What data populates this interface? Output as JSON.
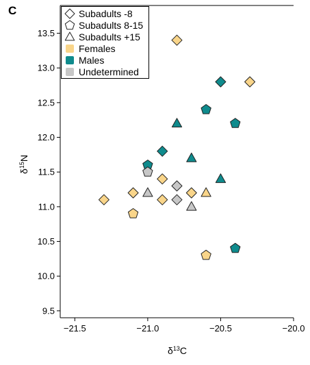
{
  "chart_data": {
    "type": "scatter",
    "panel_label": "C",
    "xlabel": {
      "base": "δ",
      "sup": "13",
      "suffix": "C"
    },
    "ylabel": {
      "base": "δ",
      "sup": "15",
      "suffix": "N"
    },
    "xlim": [
      -21.6,
      -20.0
    ],
    "ylim": [
      9.4,
      13.9
    ],
    "x_ticks": [
      -21.5,
      -21.0,
      -20.5,
      -20.0
    ],
    "x_tick_labels": [
      "−21.5",
      "−21.0",
      "−20.5",
      "−20.0"
    ],
    "y_ticks": [
      9.5,
      10.0,
      10.5,
      11.0,
      11.5,
      12.0,
      12.5,
      13.0,
      13.5
    ],
    "y_tick_labels": [
      "9.5",
      "10.0",
      "10.5",
      "11.0",
      "11.5",
      "12.0",
      "12.5",
      "13.0",
      "13.5"
    ],
    "grid": false,
    "legend_position": "top-left",
    "colors": {
      "Females": "#f9d58a",
      "Males": "#0f8b8d",
      "Undetermined": "#c7c7c7"
    },
    "legend": [
      {
        "label": "Subadults -8",
        "marker": "diamond",
        "fill": "none"
      },
      {
        "label": "Subadults 8-15",
        "marker": "pentagon",
        "fill": "none"
      },
      {
        "label": "Subadults +15",
        "marker": "triangle",
        "fill": "none"
      },
      {
        "label": "Females",
        "marker": "square",
        "fill": "#f9d58a"
      },
      {
        "label": "Males",
        "marker": "square",
        "fill": "#0f8b8d"
      },
      {
        "label": "Undetermined",
        "marker": "square",
        "fill": "#c7c7c7"
      }
    ],
    "points": [
      {
        "x": -21.3,
        "y": 11.1,
        "marker": "diamond",
        "group": "Females"
      },
      {
        "x": -21.1,
        "y": 11.2,
        "marker": "diamond",
        "group": "Females"
      },
      {
        "x": -20.9,
        "y": 11.4,
        "marker": "diamond",
        "group": "Females"
      },
      {
        "x": -20.9,
        "y": 11.1,
        "marker": "diamond",
        "group": "Females"
      },
      {
        "x": -20.7,
        "y": 11.2,
        "marker": "diamond",
        "group": "Females"
      },
      {
        "x": -20.8,
        "y": 13.4,
        "marker": "diamond",
        "group": "Females"
      },
      {
        "x": -20.3,
        "y": 12.8,
        "marker": "diamond",
        "group": "Females"
      },
      {
        "x": -21.1,
        "y": 10.9,
        "marker": "pentagon",
        "group": "Females"
      },
      {
        "x": -20.6,
        "y": 10.3,
        "marker": "pentagon",
        "group": "Females"
      },
      {
        "x": -20.6,
        "y": 11.2,
        "marker": "triangle",
        "group": "Females"
      },
      {
        "x": -20.5,
        "y": 12.8,
        "marker": "diamond",
        "group": "Males"
      },
      {
        "x": -20.6,
        "y": 12.4,
        "marker": "pentagon",
        "group": "Males"
      },
      {
        "x": -20.4,
        "y": 12.2,
        "marker": "pentagon",
        "group": "Males"
      },
      {
        "x": -20.8,
        "y": 12.2,
        "marker": "triangle",
        "group": "Males"
      },
      {
        "x": -20.9,
        "y": 11.8,
        "marker": "diamond",
        "group": "Males"
      },
      {
        "x": -20.7,
        "y": 11.7,
        "marker": "triangle",
        "group": "Males"
      },
      {
        "x": -21.0,
        "y": 11.6,
        "marker": "pentagon",
        "group": "Males"
      },
      {
        "x": -20.5,
        "y": 11.4,
        "marker": "triangle",
        "group": "Males"
      },
      {
        "x": -20.4,
        "y": 10.4,
        "marker": "pentagon",
        "group": "Males"
      },
      {
        "x": -21.0,
        "y": 11.5,
        "marker": "pentagon",
        "group": "Undetermined"
      },
      {
        "x": -21.0,
        "y": 11.2,
        "marker": "triangle",
        "group": "Undetermined"
      },
      {
        "x": -20.8,
        "y": 11.3,
        "marker": "diamond",
        "group": "Undetermined"
      },
      {
        "x": -20.8,
        "y": 11.1,
        "marker": "diamond",
        "group": "Undetermined"
      },
      {
        "x": -20.7,
        "y": 11.0,
        "marker": "triangle",
        "group": "Undetermined"
      }
    ]
  }
}
